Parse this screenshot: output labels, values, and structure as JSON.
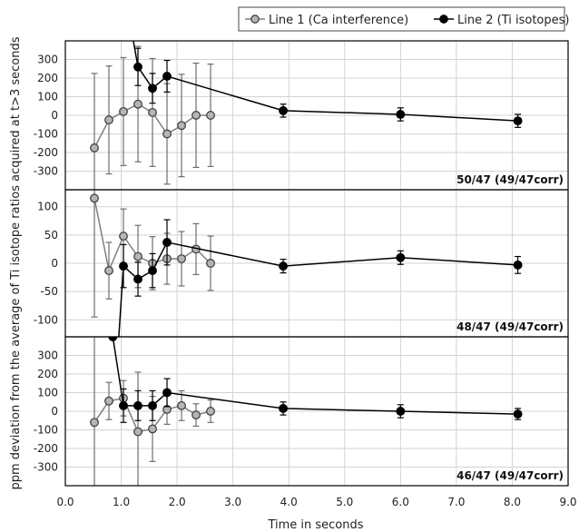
{
  "chart_data": {
    "type": "scatter",
    "xlabel": "Time in seconds",
    "ylabel": "ppm deviation from the average of Ti isotope ratios acquired at t>3 seconds",
    "xlim": [
      0,
      9
    ],
    "xticks": [
      "0.0",
      "1.0",
      "2.0",
      "3.0",
      "4.0",
      "5.0",
      "6.0",
      "7.0",
      "8.0",
      "9.0"
    ],
    "grid": true,
    "legend_position": "top-right",
    "series_styles": [
      {
        "name": "Line 1 (Ca interference)",
        "line_color": "#7f7f7f",
        "marker_fill": "#b5b5b5",
        "marker_stroke": "#444444"
      },
      {
        "name": "Line 2 (Ti isotopes)",
        "line_color": "#000000",
        "marker_fill": "#000000",
        "marker_stroke": "#000000"
      }
    ],
    "panels": [
      {
        "label": "50/47 (49/47corr)",
        "ylim": [
          -400,
          400
        ],
        "yticks": [
          300,
          200,
          100,
          0,
          -100,
          -200,
          -300
        ],
        "series": [
          {
            "name": "Line 1 (Ca interference)",
            "x": [
              0.52,
              0.78,
              1.04,
              1.3,
              1.56,
              1.82,
              2.08,
              2.34,
              2.6
            ],
            "y": [
              -175,
              -25,
              20,
              60,
              15,
              -100,
              -55,
              0,
              0
            ],
            "err": [
              400,
              290,
              290,
              310,
              290,
              270,
              275,
              280,
              275
            ]
          },
          {
            "name": "Line 2 (Ti isotopes)",
            "x": [
              1.2,
              1.3,
              1.56,
              1.82,
              3.9,
              6.0,
              8.1
            ],
            "y": [
              430,
              260,
              145,
              210,
              25,
              5,
              -30
            ],
            "err": [
              null,
              100,
              80,
              85,
              35,
              35,
              35
            ]
          }
        ]
      },
      {
        "label": "48/47 (49/47corr)",
        "ylim": [
          -130,
          130
        ],
        "yticks": [
          100,
          50,
          0,
          -50,
          -100
        ],
        "series": [
          {
            "name": "Line 1 (Ca interference)",
            "x": [
              0.52,
              0.78,
              1.04,
              1.3,
              1.56,
              1.82,
              2.08,
              2.34,
              2.6
            ],
            "y": [
              115,
              -13,
              48,
              12,
              0,
              8,
              8,
              25,
              0
            ],
            "err": [
              210,
              50,
              48,
              55,
              47,
              45,
              48,
              45,
              48
            ]
          },
          {
            "name": "Line 2 (Ti isotopes)",
            "x": [
              0.95,
              1.04,
              1.3,
              1.56,
              1.82,
              3.9,
              6.0,
              8.1
            ],
            "y": [
              -140,
              -5,
              -28,
              -13,
              37,
              -5,
              10,
              -3
            ],
            "err": [
              null,
              38,
              30,
              30,
              40,
              12,
              12,
              15
            ]
          }
        ]
      },
      {
        "label": "46/47 (49/47corr)",
        "ylim": [
          -400,
          400
        ],
        "yticks": [
          300,
          200,
          100,
          0,
          -100,
          -200,
          -300
        ],
        "series": [
          {
            "name": "Line 1 (Ca interference)",
            "x": [
              0.52,
              0.78,
              1.04,
              1.3,
              1.56,
              1.82,
              2.08,
              2.34,
              2.6
            ],
            "y": [
              -60,
              55,
              70,
              -110,
              -95,
              10,
              30,
              -20,
              0
            ],
            "err": [
              470,
              100,
              95,
              320,
              175,
              80,
              80,
              60,
              60
            ]
          },
          {
            "name": "Line 2 (Ti isotopes)",
            "x": [
              0.85,
              1.04,
              1.3,
              1.56,
              1.82,
              3.9,
              6.0,
              8.1
            ],
            "y": [
              400,
              30,
              30,
              30,
              100,
              15,
              0,
              -15
            ],
            "err": [
              null,
              90,
              80,
              80,
              75,
              35,
              35,
              30
            ]
          }
        ]
      }
    ]
  }
}
